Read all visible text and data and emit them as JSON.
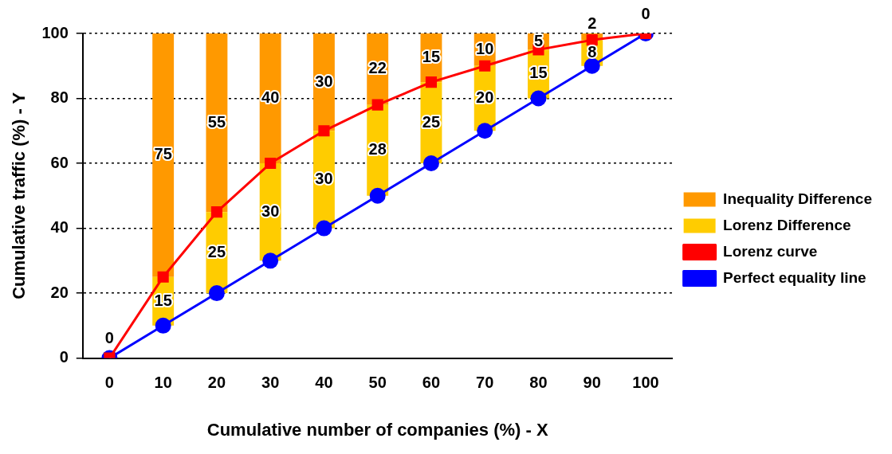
{
  "chart_data": {
    "type": "bar",
    "annotations": [
      {
        "text": "0",
        "x": "0",
        "y": 0
      },
      {
        "text": "0",
        "x": "100",
        "y": 100
      }
    ],
    "xlabel": "Cumulative number of companies (%) - X",
    "ylabel": "Cumulative traffic (%) - Y",
    "categories": [
      "0",
      "10",
      "20",
      "30",
      "40",
      "50",
      "60",
      "70",
      "80",
      "90",
      "100"
    ],
    "series": [
      {
        "name": "Lorenz Difference",
        "color": "#ffcc00",
        "base": [
          null,
          10,
          20,
          30,
          40,
          50,
          60,
          70,
          80,
          90,
          null
        ],
        "values": [
          null,
          15,
          25,
          30,
          30,
          28,
          25,
          20,
          15,
          8,
          null
        ],
        "value_labels": [
          null,
          "15",
          "25",
          "30",
          "30",
          "28",
          "25",
          "20",
          "15",
          "8",
          null
        ]
      },
      {
        "name": "Inequality Difference",
        "color": "#ff9900",
        "base": [
          null,
          25,
          45,
          60,
          70,
          78,
          85,
          90,
          95,
          98,
          null
        ],
        "values": [
          null,
          75,
          55,
          40,
          30,
          22,
          15,
          10,
          5,
          2,
          null
        ],
        "value_labels": [
          null,
          "75",
          "55",
          "40",
          "30",
          "22",
          "15",
          "10",
          "5",
          "2",
          null
        ]
      },
      {
        "name": "Lorenz curve",
        "type": "line",
        "color": "#ff0000",
        "marker": "square",
        "values": [
          0,
          25,
          45,
          60,
          70,
          78,
          85,
          90,
          95,
          98,
          100
        ]
      },
      {
        "name": "Perfect equality line",
        "type": "line",
        "color": "#0000ff",
        "marker": "circle",
        "values": [
          0,
          10,
          20,
          30,
          40,
          50,
          60,
          70,
          80,
          90,
          100
        ]
      }
    ],
    "ylim": [
      0,
      100
    ],
    "yticks": [
      0,
      20,
      40,
      60,
      80,
      100
    ],
    "grid": "y",
    "line_style": "solid",
    "legend": "right"
  }
}
